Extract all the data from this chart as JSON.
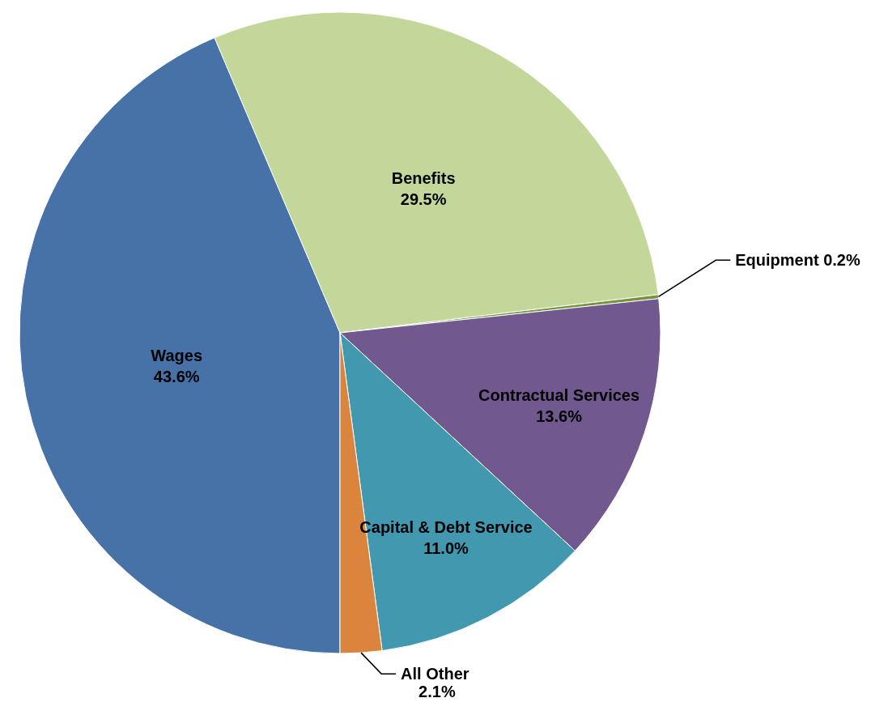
{
  "chart_data": {
    "type": "pie",
    "categories": [
      "Wages",
      "Benefits",
      "Equipment",
      "Contractual Services",
      "Capital & Debt Service",
      "All Other"
    ],
    "values": [
      43.6,
      29.5,
      0.2,
      13.6,
      11.0,
      2.1
    ],
    "value_labels": [
      "43.6%",
      "29.5%",
      "0.2%",
      "13.6%",
      "11.0%",
      "2.1%"
    ],
    "colors": [
      "#4672a8",
      "#c4d79b",
      "#77933c",
      "#71588f",
      "#4198af",
      "#db843d"
    ],
    "legend": false
  }
}
